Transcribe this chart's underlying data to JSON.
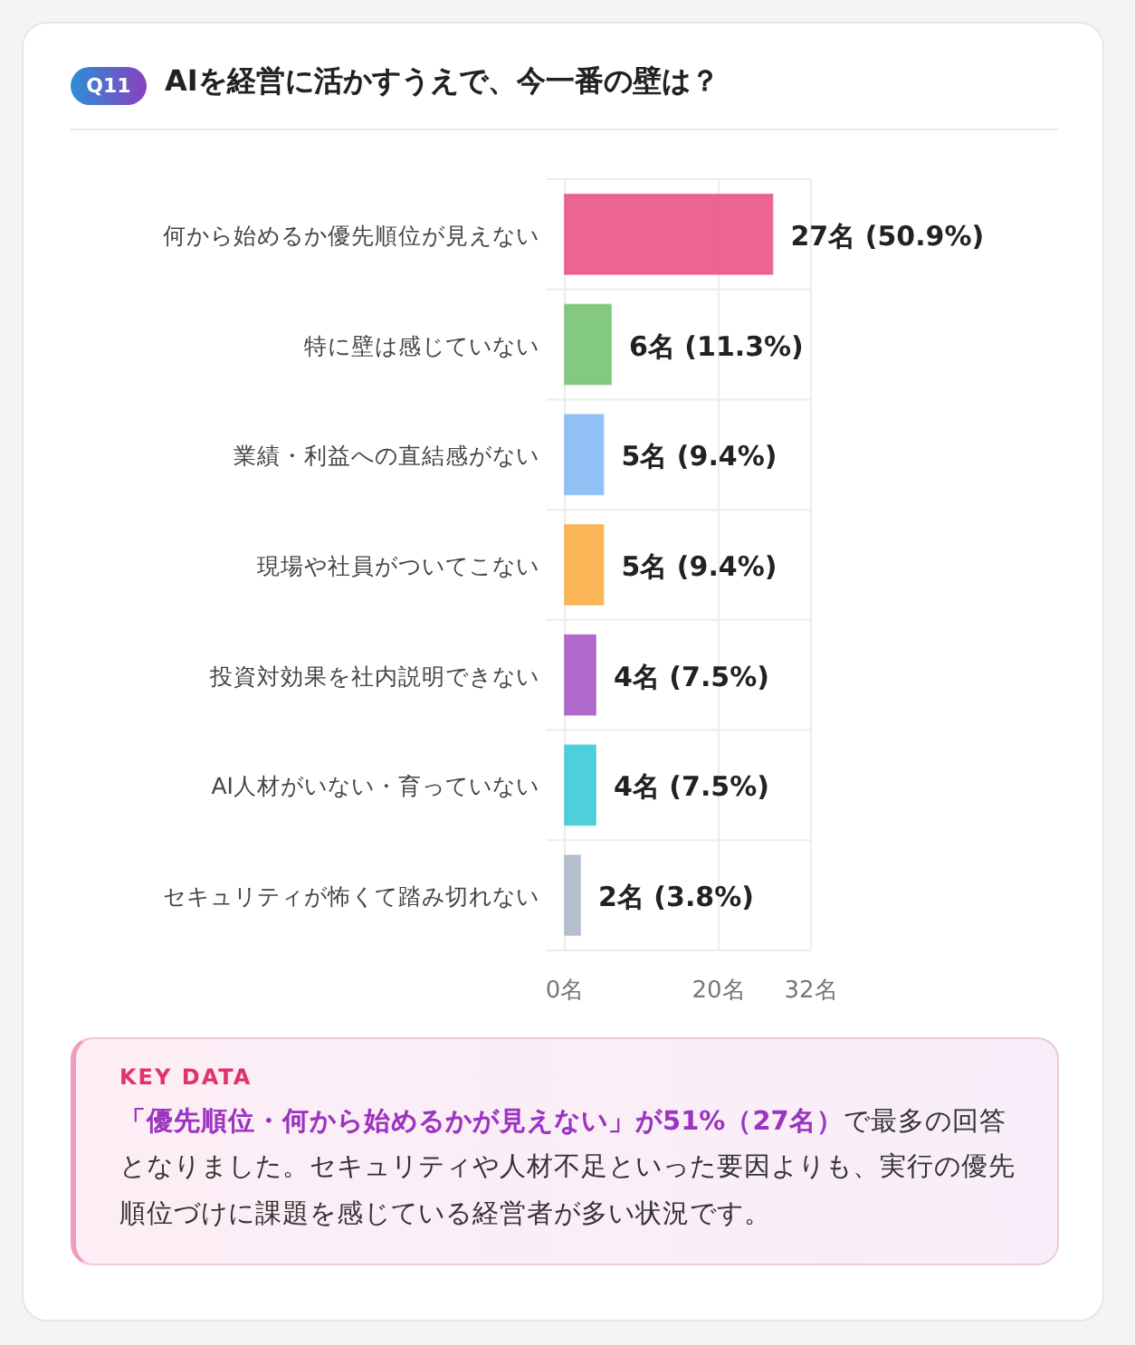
{
  "chart_data": {
    "type": "bar",
    "orientation": "horizontal",
    "title": "AIを経営に活かすうえで、今一番の壁は？",
    "categories": [
      "何から始めるか優先順位が見えない",
      "特に壁は感じていない",
      "業績・利益への直結感がない",
      "現場や社員がついてこない",
      "投資対効果を社内説明できない",
      "AI人材がいない・育っていない",
      "セキュリティが怖くて踏み切れない"
    ],
    "values": [
      27,
      6,
      5,
      5,
      4,
      4,
      2
    ],
    "colors": [
      "#e94a7f",
      "#6dbf6a",
      "#7fb6f5",
      "#f9a93a",
      "#a34fc2",
      "#2ec8d6",
      "#a9b4c4"
    ],
    "value_labels": [
      "27名 (50.9%)",
      "6名 (11.3%)",
      "5名 (9.4%)",
      "5名 (9.4%)",
      "4名 (7.5%)",
      "4名 (7.5%)",
      "2名 (3.8%)"
    ],
    "xlim": [
      0,
      32
    ],
    "xticks": [
      {
        "value": 0,
        "label": "0名"
      },
      {
        "value": 20,
        "label": "20名"
      },
      {
        "value": 32,
        "label": "32名"
      }
    ],
    "grid": true,
    "annotations": [
      "Q11",
      "KEY DATA",
      "「優先順位・何から始めるかが見えない」が51%（27名）",
      "で最多の回答となりました。セキュリティや人材不足といった要因よりも、実行の優先順位づけに課題を感じている経営者が多い状況です。"
    ]
  }
}
